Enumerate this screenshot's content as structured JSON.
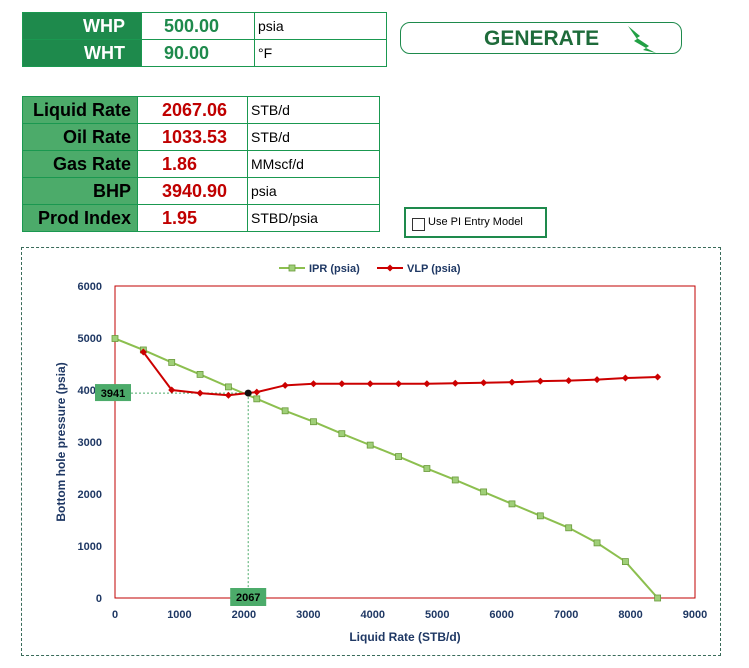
{
  "inputs": [
    {
      "label": "WHP",
      "value": "500.00",
      "unit": "psia"
    },
    {
      "label": "WHT",
      "value": "90.00",
      "unit": "°F"
    }
  ],
  "generate": {
    "label": "GENERATE",
    "icon": "lightning-icon"
  },
  "results": [
    {
      "label": "Liquid Rate",
      "value": "2067.06",
      "unit": "STB/d"
    },
    {
      "label": "Oil Rate",
      "value": "1033.53",
      "unit": "STB/d"
    },
    {
      "label": "Gas Rate",
      "value": "1.86",
      "unit": "MMscf/d"
    },
    {
      "label": "BHP",
      "value": "3940.90",
      "unit": "psia"
    },
    {
      "label": "Prod Index",
      "value": "1.95",
      "unit": "STBD/psia"
    }
  ],
  "pi_entry": {
    "label": "Use PI Entry Model",
    "checked": false
  },
  "colors": {
    "accent_green": "#1e8a4c",
    "result_red": "#c00000",
    "ipr": "#8cbf4f",
    "vlp": "#cc0000"
  },
  "chart_data": {
    "type": "line",
    "xlabel": "Liquid Rate (STB/d)",
    "ylabel": "Bottom hole pressure (psia)",
    "xlim": [
      0,
      9000
    ],
    "ylim": [
      0,
      6000
    ],
    "xticks": [
      "0",
      "1000",
      "2000",
      "3000",
      "4000",
      "5000",
      "6000",
      "7000",
      "8000",
      "9000"
    ],
    "yticks": [
      "0",
      "1000",
      "2000",
      "3000",
      "4000",
      "5000",
      "6000"
    ],
    "legend_position": "top",
    "series": [
      {
        "name": "IPR (psia)",
        "color": "#8cbf4f",
        "marker": "square",
        "x": [
          0,
          440,
          880,
          1320,
          1760,
          2200,
          2640,
          3080,
          3520,
          3960,
          4400,
          4840,
          5280,
          5720,
          6160,
          6600,
          7040,
          7480,
          7920,
          8420
        ],
        "y": [
          4990,
          4770,
          4530,
          4300,
          4060,
          3830,
          3600,
          3390,
          3160,
          2940,
          2720,
          2490,
          2270,
          2040,
          1810,
          1580,
          1350,
          1060,
          700,
          0
        ]
      },
      {
        "name": "VLP (psia)",
        "color": "#cc0000",
        "marker": "diamond",
        "x": [
          440,
          880,
          1320,
          1760,
          2200,
          2640,
          3080,
          3520,
          3960,
          4400,
          4840,
          5280,
          5720,
          6160,
          6600,
          7040,
          7480,
          7920,
          8420
        ],
        "y": [
          4730,
          4000,
          3940,
          3900,
          3960,
          4090,
          4120,
          4120,
          4120,
          4120,
          4120,
          4130,
          4140,
          4150,
          4170,
          4180,
          4200,
          4230,
          4250
        ]
      }
    ],
    "operating_point": {
      "x": 2067,
      "y": 3941,
      "x_label": "2067",
      "y_label": "3941"
    }
  }
}
